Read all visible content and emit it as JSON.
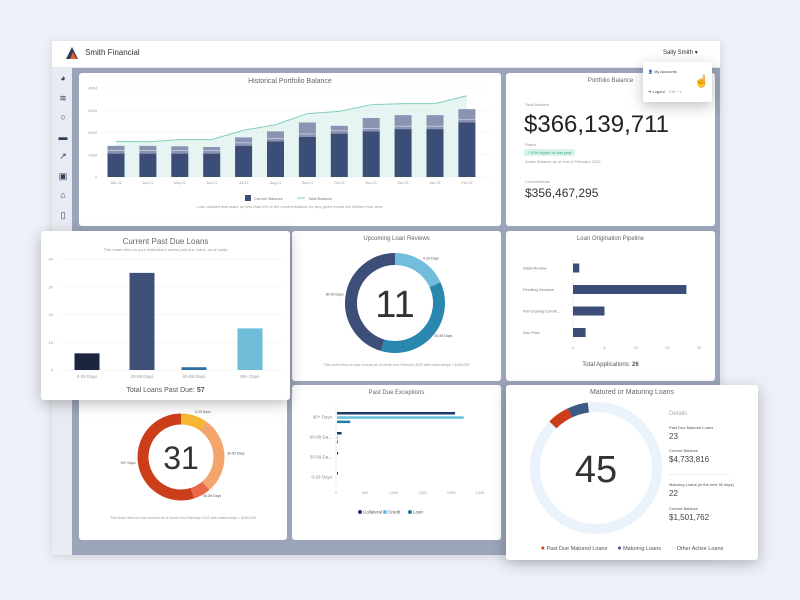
{
  "app": {
    "title": "Smith Financial",
    "user": "Sally Smith",
    "user_caret": "▾"
  },
  "menu": {
    "items": [
      {
        "label": "My Accounts",
        "icon": "user-icon"
      },
      {
        "label": "Logout",
        "shortcut": "Ctrl + L",
        "icon": "logout-icon"
      }
    ]
  },
  "sidebar": {
    "items": [
      {
        "icon": "pie-chart-icon"
      },
      {
        "icon": "database-icon"
      },
      {
        "icon": "circle-icon"
      },
      {
        "icon": "folder-icon"
      },
      {
        "icon": "line-chart-icon"
      },
      {
        "icon": "briefcase-icon"
      },
      {
        "icon": "bank-icon"
      },
      {
        "icon": "document-icon"
      }
    ]
  },
  "portfolio": {
    "title": "Portfolio Balance",
    "total_label": "Total Balance",
    "total": "$366,139,711",
    "status_label": "Status",
    "badge": "10% higher vs last year",
    "as_of": "Active Balance as of end of February 2022",
    "commit_label": "Commitments",
    "commit": "$356,467,295",
    "badge_color": "#d6f3ea"
  },
  "chart_data": [
    {
      "id": "historical",
      "type": "bar",
      "title": "Historical Portfolio Balance",
      "categories": [
        "Mar-21",
        "Apr-21",
        "May-21",
        "Jun-21",
        "Jul-21",
        "Aug-21",
        "Sep-21",
        "Oct-21",
        "Nov-21",
        "Dec-21",
        "Jan-22",
        "Feb-22"
      ],
      "series": [
        {
          "name": "Current Balance",
          "values": [
            105,
            105,
            105,
            105,
            140,
            160,
            180,
            195,
            205,
            215,
            215,
            245
          ]
        },
        {
          "name": "Stacked Other",
          "values": [
            140,
            140,
            138,
            135,
            178,
            205,
            245,
            230,
            265,
            278,
            278,
            305
          ]
        },
        {
          "name": "Total Balance",
          "type": "line",
          "values": [
            160,
            158,
            168,
            168,
            210,
            235,
            285,
            295,
            325,
            330,
            330,
            365
          ]
        }
      ],
      "yticks": [
        "0",
        "100M",
        "200M",
        "300M",
        "400M"
      ],
      "ylim": [
        0,
        400
      ],
      "caption": "Loan classes that make up less than 5% of the current balance for any given month are hidden from view.",
      "legend": [
        "Current Balance",
        "Total Balance"
      ]
    },
    {
      "id": "past_due",
      "type": "bar",
      "title": "Current Past Due Loans",
      "subtitle": "This chart refers to your institution's active past due loans, as of today",
      "categories": [
        "0-29 Days",
        "30-59 Days",
        "60-89 Days",
        "90+ Days"
      ],
      "values": [
        6,
        35,
        1,
        15
      ],
      "colors": [
        "#1c2540",
        "#3e5077",
        "#2f6fa3",
        "#6fbcd9"
      ],
      "yticks": [
        "0",
        "10",
        "20",
        "30",
        "40"
      ],
      "ylim": [
        0,
        40
      ],
      "total_label": "Total Loans Past Due:",
      "total": "57"
    },
    {
      "id": "reviews",
      "type": "pie",
      "title": "Upcoming Loan Reviews",
      "center": "11",
      "categories": [
        "0-29 Days",
        "30-59 Days",
        "60-90 Days"
      ],
      "values": [
        2,
        4,
        5
      ],
      "colors": [
        "#72bcdc",
        "#2a88b0",
        "#3d4f78"
      ],
      "caption": "This chart refers to loan reviews as of month end February 2022 with relationships > $250,000"
    },
    {
      "id": "pipeline",
      "type": "bar",
      "title": "Loan Origination Pipeline",
      "categories": [
        "Initial Review",
        "Pending Decision",
        "Pre-Closing Condit...",
        "Doc Prep"
      ],
      "values": [
        1,
        18,
        5,
        2
      ],
      "xticks": [
        "0",
        "5",
        "10",
        "15",
        "20"
      ],
      "xlim": [
        0,
        20
      ],
      "total_label": "Total Applications:",
      "total": "26"
    },
    {
      "id": "past_due_donut",
      "type": "pie",
      "center": "31",
      "categories": [
        "0-29 Days",
        "30-59 Days",
        "60-89 Days",
        "90+ Days"
      ],
      "values": [
        3,
        9,
        2,
        17
      ],
      "colors": [
        "#f5b731",
        "#f3a56b",
        "#e8694a",
        "#cc3d1a"
      ],
      "caption": "This chart refers to loan reviews as of month end February 2022 with relationships > $250,000"
    },
    {
      "id": "exceptions",
      "type": "bar",
      "title": "Past Due Exceptions",
      "categories": [
        "90+ Days",
        "60-89 Da...",
        "30-59 Da...",
        "0-29 Days"
      ],
      "series": [
        {
          "name": "Collateral",
          "color": "#1f3a68",
          "values": [
            2050,
            80,
            20,
            15
          ]
        },
        {
          "name": "Credit",
          "color": "#66c0dc",
          "values": [
            2200,
            5,
            0,
            0
          ]
        },
        {
          "name": "Loan",
          "color": "#1e7fa6",
          "values": [
            230,
            10,
            0,
            0
          ]
        }
      ],
      "xticks": [
        "0",
        "500",
        "1,000",
        "1,500",
        "2,000",
        "2,500"
      ],
      "xlim": [
        0,
        2500
      ]
    },
    {
      "id": "matured",
      "type": "pie",
      "title": "Matured or Maturing Loans",
      "center": "45",
      "categories": [
        "Past Due Matured Loans",
        "Maturing Loans",
        "Other Active Loans"
      ],
      "ring_share": [
        0.055,
        0.05,
        0.895
      ],
      "colors": [
        "#cc3d1a",
        "#3d5a85",
        "#eaf2fb"
      ]
    }
  ],
  "matured_details": {
    "heading": "Details",
    "items": [
      {
        "label": "Past Due Matured Loans",
        "value": "23"
      },
      {
        "label": "Current Balance",
        "value": "$4,733,816"
      },
      {
        "label": "Maturing Loans (in the next 90 days)",
        "value": "22"
      },
      {
        "label": "Current Balance",
        "value": "$1,501,762"
      }
    ]
  }
}
